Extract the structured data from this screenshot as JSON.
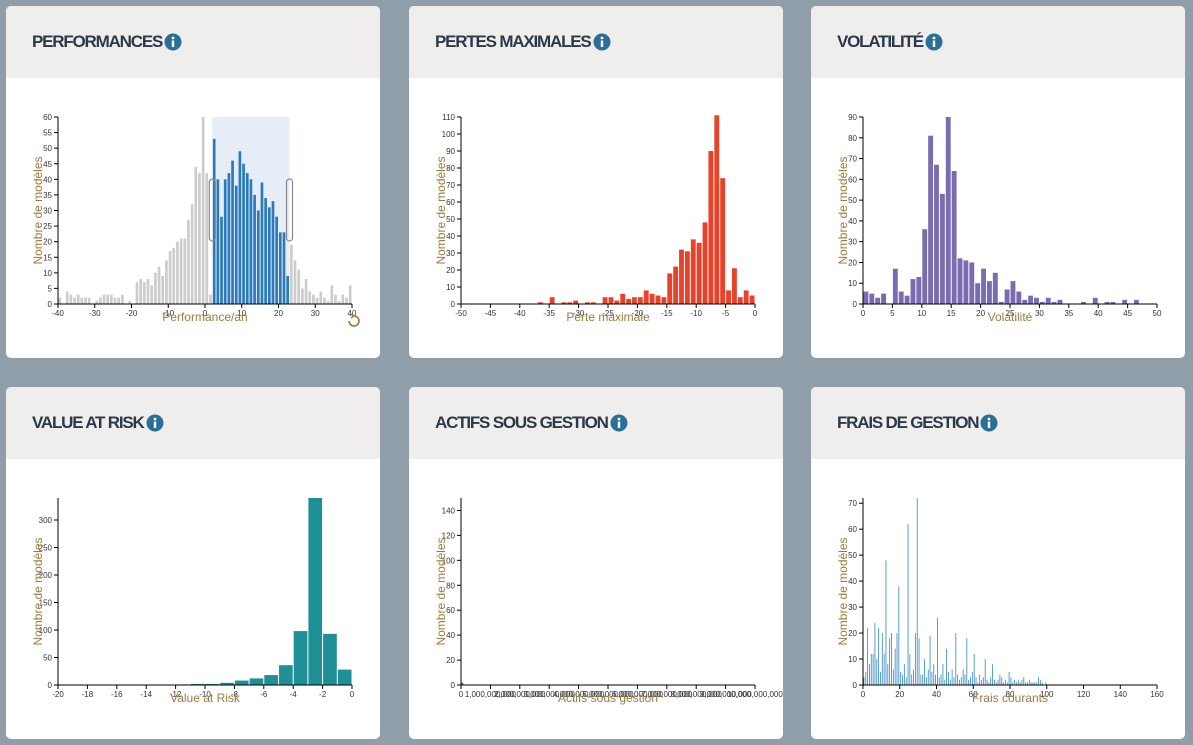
{
  "chart_data": [
    {
      "type": "histogram",
      "title": "PERFORMANCES",
      "xlabel": "Performance/an",
      "ylabel": "Nombre de modèles",
      "color": "#2b7bba",
      "unselected_color": "#cccccc",
      "selection": [
        2,
        23
      ],
      "bins": [
        -40,
        -39,
        -38,
        -37,
        -36,
        -35,
        -34,
        -33,
        -32,
        -31,
        -30,
        -29,
        -28,
        -27,
        -26,
        -25,
        -24,
        -23,
        -22,
        -21,
        -20,
        -19,
        -18,
        -17,
        -16,
        -15,
        -14,
        -13,
        -12,
        -11,
        -10,
        -9,
        -8,
        -7,
        -6,
        -5,
        -4,
        -3,
        -2,
        -1,
        0,
        1,
        2,
        3,
        4,
        5,
        6,
        7,
        8,
        9,
        10,
        11,
        12,
        13,
        14,
        15,
        16,
        17,
        18,
        19,
        20,
        21,
        22,
        23,
        24,
        25,
        26,
        27,
        28,
        29,
        30,
        31,
        32,
        33,
        34,
        35,
        36,
        37,
        38,
        39,
        40
      ],
      "counts": [
        2,
        0,
        4,
        3,
        2,
        3,
        2,
        2,
        2,
        0,
        1,
        2,
        3,
        3,
        3,
        2,
        2,
        3,
        0,
        1,
        0,
        7,
        8,
        7,
        8,
        6,
        10,
        12,
        9,
        14,
        17,
        18,
        20,
        21,
        21,
        27,
        32,
        44,
        42,
        60,
        42,
        3,
        53,
        40,
        28,
        40,
        42,
        46,
        38,
        49,
        45,
        42,
        40,
        35,
        30,
        39,
        34,
        31,
        33,
        28,
        23,
        23,
        9,
        19,
        14,
        11,
        5,
        8,
        4,
        3,
        2,
        4,
        2,
        1,
        6,
        3,
        1,
        3,
        2,
        6
      ],
      "xlim": [
        -40,
        40
      ],
      "xticks": [
        -40,
        -30,
        -20,
        -10,
        0,
        10,
        20,
        30,
        40
      ],
      "ylim": [
        0,
        60
      ],
      "yticks": [
        0,
        5,
        10,
        15,
        20,
        25,
        30,
        35,
        40,
        45,
        50,
        55,
        60
      ]
    },
    {
      "type": "histogram",
      "title": "PERTES MAXIMALES",
      "xlabel": "Perte maximale",
      "ylabel": "Nombre de modèles",
      "color": "#e8432a",
      "bins": [
        -50,
        -49,
        -48,
        -47,
        -46,
        -45,
        -44,
        -43,
        -42,
        -41,
        -40,
        -39,
        -38,
        -37,
        -36,
        -35,
        -34,
        -33,
        -32,
        -31,
        -30,
        -29,
        -28,
        -27,
        -26,
        -25,
        -24,
        -23,
        -22,
        -21,
        -20,
        -19,
        -18,
        -17,
        -16,
        -15,
        -14,
        -13,
        -12,
        -11,
        -10,
        -9,
        -8,
        -7,
        -6,
        -5,
        -4,
        -3,
        -2,
        -1,
        0
      ],
      "counts": [
        0,
        0,
        0,
        0,
        0,
        0,
        0,
        0,
        0,
        0,
        0,
        0,
        0,
        1,
        0,
        4,
        0,
        1,
        1,
        2,
        0,
        1,
        1,
        0,
        4,
        4,
        2,
        6,
        3,
        4,
        4,
        8,
        6,
        5,
        4,
        18,
        22,
        32,
        31,
        38,
        36,
        48,
        90,
        111,
        74,
        8,
        21,
        4,
        8,
        5
      ],
      "xlim": [
        -50,
        0
      ],
      "xticks": [
        -50,
        -45,
        -40,
        -35,
        -30,
        -25,
        -20,
        -15,
        -10,
        -5,
        0
      ],
      "ylim": [
        0,
        110
      ],
      "yticks": [
        0,
        10,
        20,
        30,
        40,
        50,
        60,
        70,
        80,
        90,
        100,
        110
      ]
    },
    {
      "type": "histogram",
      "title": "VOLATILITÉ",
      "xlabel": "Volatilité",
      "ylabel": "Nombre de modèles",
      "color": "#7b6bb0",
      "bins": [
        0,
        1,
        2,
        3,
        4,
        5,
        6,
        7,
        8,
        9,
        10,
        11,
        12,
        13,
        14,
        15,
        16,
        17,
        18,
        19,
        20,
        21,
        22,
        23,
        24,
        25,
        26,
        27,
        28,
        29,
        30,
        31,
        32,
        33,
        34,
        35,
        36,
        37,
        38,
        39,
        40,
        41,
        42,
        43,
        44,
        45,
        46,
        47,
        48,
        49,
        50
      ],
      "counts": [
        6,
        5,
        3,
        5,
        0,
        17,
        6,
        4,
        12,
        13,
        36,
        81,
        67,
        53,
        90,
        64,
        22,
        21,
        20,
        10,
        17,
        11,
        15,
        1,
        7,
        11,
        6,
        2,
        4,
        3,
        1,
        3,
        1,
        2,
        0,
        0,
        0,
        1,
        0,
        3,
        0,
        1,
        1,
        0,
        2,
        0,
        2,
        0,
        0,
        0
      ],
      "xlim": [
        0,
        50
      ],
      "xticks": [
        0,
        5,
        10,
        15,
        20,
        25,
        30,
        35,
        40,
        45,
        50
      ],
      "ylim": [
        0,
        90
      ],
      "yticks": [
        0,
        10,
        20,
        30,
        40,
        50,
        60,
        70,
        80,
        90
      ]
    },
    {
      "type": "histogram",
      "title": "VALUE AT RISK",
      "xlabel": "Value at Risk",
      "ylabel": "Nombre de modèles",
      "color": "#1f9096",
      "bins": [
        -20,
        -19,
        -18,
        -17,
        -16,
        -15,
        -14,
        -13,
        -12,
        -11,
        -10,
        -9,
        -8,
        -7,
        -6,
        -5,
        -4,
        -3,
        -2,
        -1,
        0
      ],
      "counts": [
        0,
        0,
        0,
        0,
        0,
        0,
        0,
        0,
        1,
        2,
        2,
        4,
        8,
        12,
        18,
        36,
        98,
        340,
        93,
        28
      ],
      "xlim": [
        -20,
        0
      ],
      "xticks": [
        -20,
        -18,
        -16,
        -14,
        -12,
        -10,
        -8,
        -6,
        -4,
        -2,
        0
      ],
      "ylim": [
        0,
        340
      ],
      "yticks": [
        0,
        50,
        100,
        150,
        200,
        250,
        300
      ]
    },
    {
      "type": "histogram",
      "title": "ACTIFS SOUS GESTION",
      "xlabel": "Actifs sous gestion",
      "ylabel": "Nombre de modèles",
      "color": "#8a7a3a",
      "bins": [
        0,
        100000000
      ],
      "counts": [
        2
      ],
      "xlim": [
        0,
        10000000000
      ],
      "xticks": [
        0,
        {
          "value": 1000000000,
          "label": "1,000,000,000"
        },
        {
          "value": 2000000000,
          "label": "2,000,000,000"
        },
        {
          "value": 3000000000,
          "label": "3,000,000,000"
        },
        {
          "value": 4000000000,
          "label": "4,000,000,000"
        },
        {
          "value": 5000000000,
          "label": "5,000,000,000"
        },
        {
          "value": 6000000000,
          "label": "6,000,000,000"
        },
        {
          "value": 7000000000,
          "label": "7,000,000,000"
        },
        {
          "value": 8000000000,
          "label": "8,000,000,000"
        },
        {
          "value": 9000000000,
          "label": "9,000,000,000"
        },
        {
          "value": 10000000000,
          "label": "10,000,000,000"
        }
      ],
      "ylim": [
        0,
        150
      ],
      "yticks": [
        0,
        20,
        40,
        60,
        80,
        100,
        120,
        140
      ]
    },
    {
      "type": "histogram",
      "title": "FRAIS DE GESTION",
      "xlabel": "Frais courants",
      "ylabel": "Nombre de modèles",
      "color": "#3c8dc4",
      "bins": [
        0,
        1,
        2,
        3,
        4,
        5,
        6,
        7,
        8,
        9,
        10,
        11,
        12,
        13,
        14,
        15,
        16,
        17,
        18,
        19,
        20,
        21,
        22,
        23,
        24,
        25,
        26,
        27,
        28,
        29,
        30,
        31,
        32,
        33,
        34,
        35,
        36,
        37,
        38,
        39,
        40,
        41,
        42,
        43,
        44,
        45,
        46,
        47,
        48,
        49,
        50,
        51,
        52,
        53,
        54,
        55,
        56,
        57,
        58,
        59,
        60,
        61,
        62,
        63,
        64,
        65,
        66,
        67,
        68,
        69,
        70,
        71,
        72,
        73,
        74,
        75,
        76,
        77,
        78,
        79,
        80,
        81,
        82,
        83,
        84,
        85,
        86,
        87,
        88,
        89,
        90,
        91,
        92,
        93,
        94,
        95,
        96,
        97,
        98,
        99,
        100
      ],
      "counts": [
        3,
        5,
        22,
        8,
        12,
        12,
        24,
        10,
        22,
        5,
        20,
        12,
        48,
        8,
        18,
        20,
        6,
        14,
        20,
        38,
        5,
        4,
        8,
        3,
        62,
        12,
        4,
        6,
        20,
        72,
        18,
        4,
        4,
        10,
        3,
        6,
        19,
        5,
        8,
        4,
        26,
        3,
        4,
        8,
        2,
        14,
        5,
        2,
        6,
        3,
        20,
        4,
        2,
        3,
        6,
        4,
        18,
        2,
        3,
        5,
        12,
        3,
        1,
        4,
        2,
        3,
        10,
        2,
        1,
        3,
        8,
        2,
        1,
        2,
        4,
        3,
        1,
        2,
        1,
        5,
        3,
        1,
        2,
        1,
        2,
        1,
        2,
        3,
        1,
        1,
        2,
        1,
        1,
        1,
        1,
        3,
        2,
        1,
        0,
        1
      ],
      "xlim": [
        0,
        160
      ],
      "xticks": [
        0,
        20,
        40,
        60,
        80,
        100,
        120,
        140,
        160
      ],
      "ylim": [
        0,
        72
      ],
      "yticks": [
        0,
        10,
        20,
        30,
        40,
        50,
        60,
        70
      ]
    }
  ]
}
